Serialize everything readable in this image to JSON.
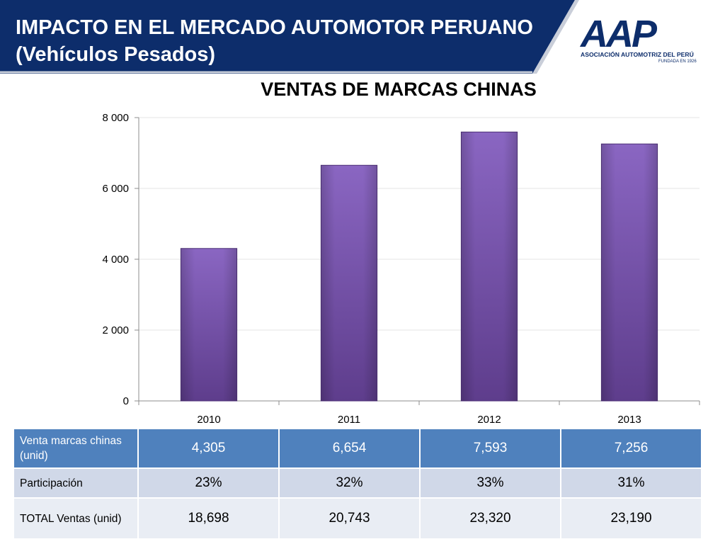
{
  "header": {
    "title_line1": "IMPACTO EN EL MERCADO AUTOMOTOR PERUANO",
    "title_line2": "(Vehículos Pesados)"
  },
  "logo": {
    "mark": "AAP",
    "org": "ASOCIACIÓN AUTOMOTRIZ DEL PERÚ",
    "founded": "FUNDADA EN 1926"
  },
  "colors": {
    "header_band": "#0d2d6b",
    "bar_fill": "#7b56b0",
    "table_header_row": "#4f81bd",
    "table_row_alt1": "#d0d8e8",
    "table_row_alt2": "#e9edf4"
  },
  "chart_data": {
    "type": "bar",
    "title": "VENTAS DE MARCAS CHINAS",
    "categories": [
      "2010",
      "2011",
      "2012",
      "2013"
    ],
    "values": [
      4305,
      6654,
      7593,
      7256
    ],
    "ylim": [
      0,
      8000
    ],
    "y_ticks": [
      0,
      2000,
      4000,
      6000,
      8000
    ],
    "y_tick_labels": [
      "0",
      "2 000",
      "4 000",
      "6 000",
      "8 000"
    ],
    "grid": true,
    "legend": "none"
  },
  "table": {
    "rows": [
      {
        "label": "Venta marcas chinas (unid)",
        "values": [
          "4,305",
          "6,654",
          "7,593",
          "7,256"
        ]
      },
      {
        "label": "Participación",
        "values": [
          "23%",
          "32%",
          "33%",
          "31%"
        ]
      },
      {
        "label": "TOTAL Ventas (unid)",
        "values": [
          "18,698",
          "20,743",
          "23,320",
          "23,190"
        ]
      }
    ]
  }
}
